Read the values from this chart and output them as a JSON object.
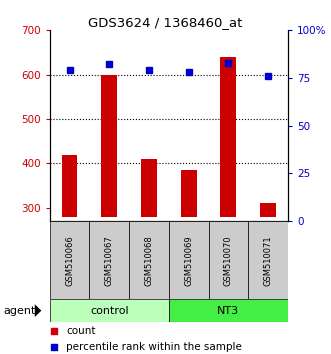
{
  "title": "GDS3624 / 1368460_at",
  "samples": [
    "GSM510066",
    "GSM510067",
    "GSM510068",
    "GSM510069",
    "GSM510070",
    "GSM510071"
  ],
  "counts": [
    420,
    600,
    410,
    385,
    640,
    310
  ],
  "percentile_ranks": [
    79,
    82,
    79,
    78,
    83,
    76
  ],
  "ylim_left": [
    270,
    700
  ],
  "ylim_right": [
    0,
    100
  ],
  "yticks_left": [
    300,
    400,
    500,
    600,
    700
  ],
  "yticks_right": [
    0,
    25,
    50,
    75,
    100
  ],
  "yticklabels_right": [
    "0",
    "25",
    "50",
    "75",
    "100%"
  ],
  "grid_values": [
    400,
    500,
    600
  ],
  "bar_color": "#cc0000",
  "dot_color": "#0000cc",
  "bar_bottom": 280,
  "groups": [
    {
      "label": "control",
      "samples": [
        0,
        1,
        2
      ],
      "color": "#bbffbb"
    },
    {
      "label": "NT3",
      "samples": [
        3,
        4,
        5
      ],
      "color": "#44ee44"
    }
  ],
  "agent_label": "agent",
  "legend_count_label": "count",
  "legend_pct_label": "percentile rank within the sample",
  "tick_color_left": "#cc0000",
  "tick_color_right": "#0000cc",
  "box_color": "#cccccc",
  "bar_width": 0.4
}
